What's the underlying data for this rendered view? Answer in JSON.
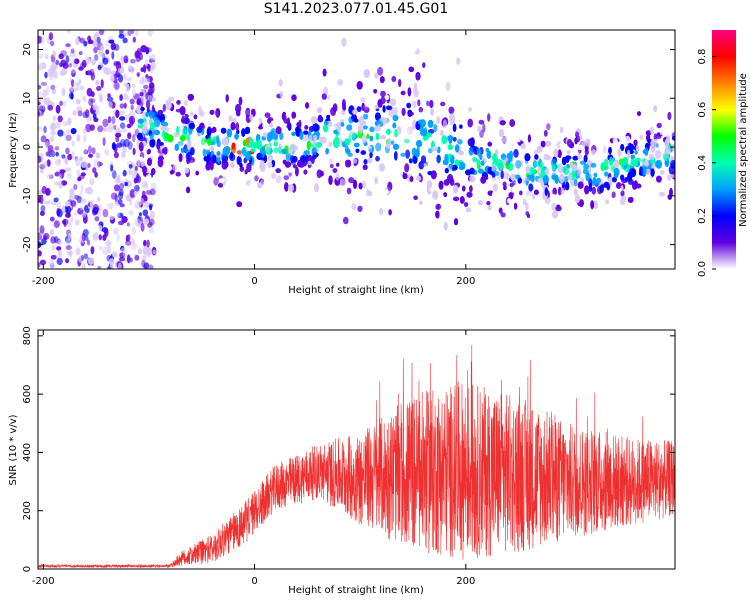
{
  "title": "S141.2023.077.01.45.G01",
  "chart_data": [
    {
      "type": "heatmap",
      "xlabel": "Height of straight line (km)",
      "ylabel": "Frequency (Hz)",
      "xlim": [
        -205,
        398
      ],
      "ylim": [
        -25,
        24
      ],
      "x_ticks": [
        -200,
        0,
        200
      ],
      "y_ticks": [
        20,
        10,
        0,
        -10,
        -20
      ],
      "colorbar": {
        "label": "Normalized spectral amplitude",
        "range": [
          0,
          0.9
        ],
        "ticks": [
          0.0,
          0.2,
          0.4,
          0.6,
          0.8
        ],
        "colors": [
          "#ffffff",
          "#6000e0",
          "#0000ff",
          "#00a0ff",
          "#00ffb0",
          "#00ff00",
          "#ffff00",
          "#ff8000",
          "#ff0000",
          "#ff0080"
        ]
      },
      "band_center_hz": [
        {
          "x": -105,
          "y": 5
        },
        {
          "x": -70,
          "y": 2
        },
        {
          "x": -40,
          "y": 0
        },
        {
          "x": 0,
          "y": 0
        },
        {
          "x": 60,
          "y": 1
        },
        {
          "x": 100,
          "y": 3
        },
        {
          "x": 150,
          "y": 2
        },
        {
          "x": 200,
          "y": -2
        },
        {
          "x": 260,
          "y": -5
        },
        {
          "x": 320,
          "y": -5
        },
        {
          "x": 398,
          "y": -1
        }
      ]
    },
    {
      "type": "line",
      "xlabel": "Height of straight line (km)",
      "ylabel": "SNR (10 * v/v)",
      "xlim": [
        -205,
        398
      ],
      "ylim": [
        0,
        820
      ],
      "x_ticks": [
        -200,
        0,
        200
      ],
      "y_ticks": [
        0,
        200,
        400,
        600,
        800
      ],
      "color": "#f03030",
      "envelope": [
        {
          "x": -205,
          "low": 5,
          "high": 15
        },
        {
          "x": -80,
          "low": 5,
          "high": 15
        },
        {
          "x": -70,
          "low": 10,
          "high": 60
        },
        {
          "x": -40,
          "low": 20,
          "high": 120
        },
        {
          "x": -10,
          "low": 80,
          "high": 230
        },
        {
          "x": 20,
          "low": 200,
          "high": 360
        },
        {
          "x": 60,
          "low": 240,
          "high": 430
        },
        {
          "x": 100,
          "low": 150,
          "high": 470
        },
        {
          "x": 150,
          "low": 60,
          "high": 600
        },
        {
          "x": 200,
          "low": 30,
          "high": 650
        },
        {
          "x": 260,
          "low": 60,
          "high": 580
        },
        {
          "x": 300,
          "low": 100,
          "high": 500
        },
        {
          "x": 360,
          "low": 150,
          "high": 450
        },
        {
          "x": 398,
          "low": 180,
          "high": 440
        }
      ]
    }
  ]
}
